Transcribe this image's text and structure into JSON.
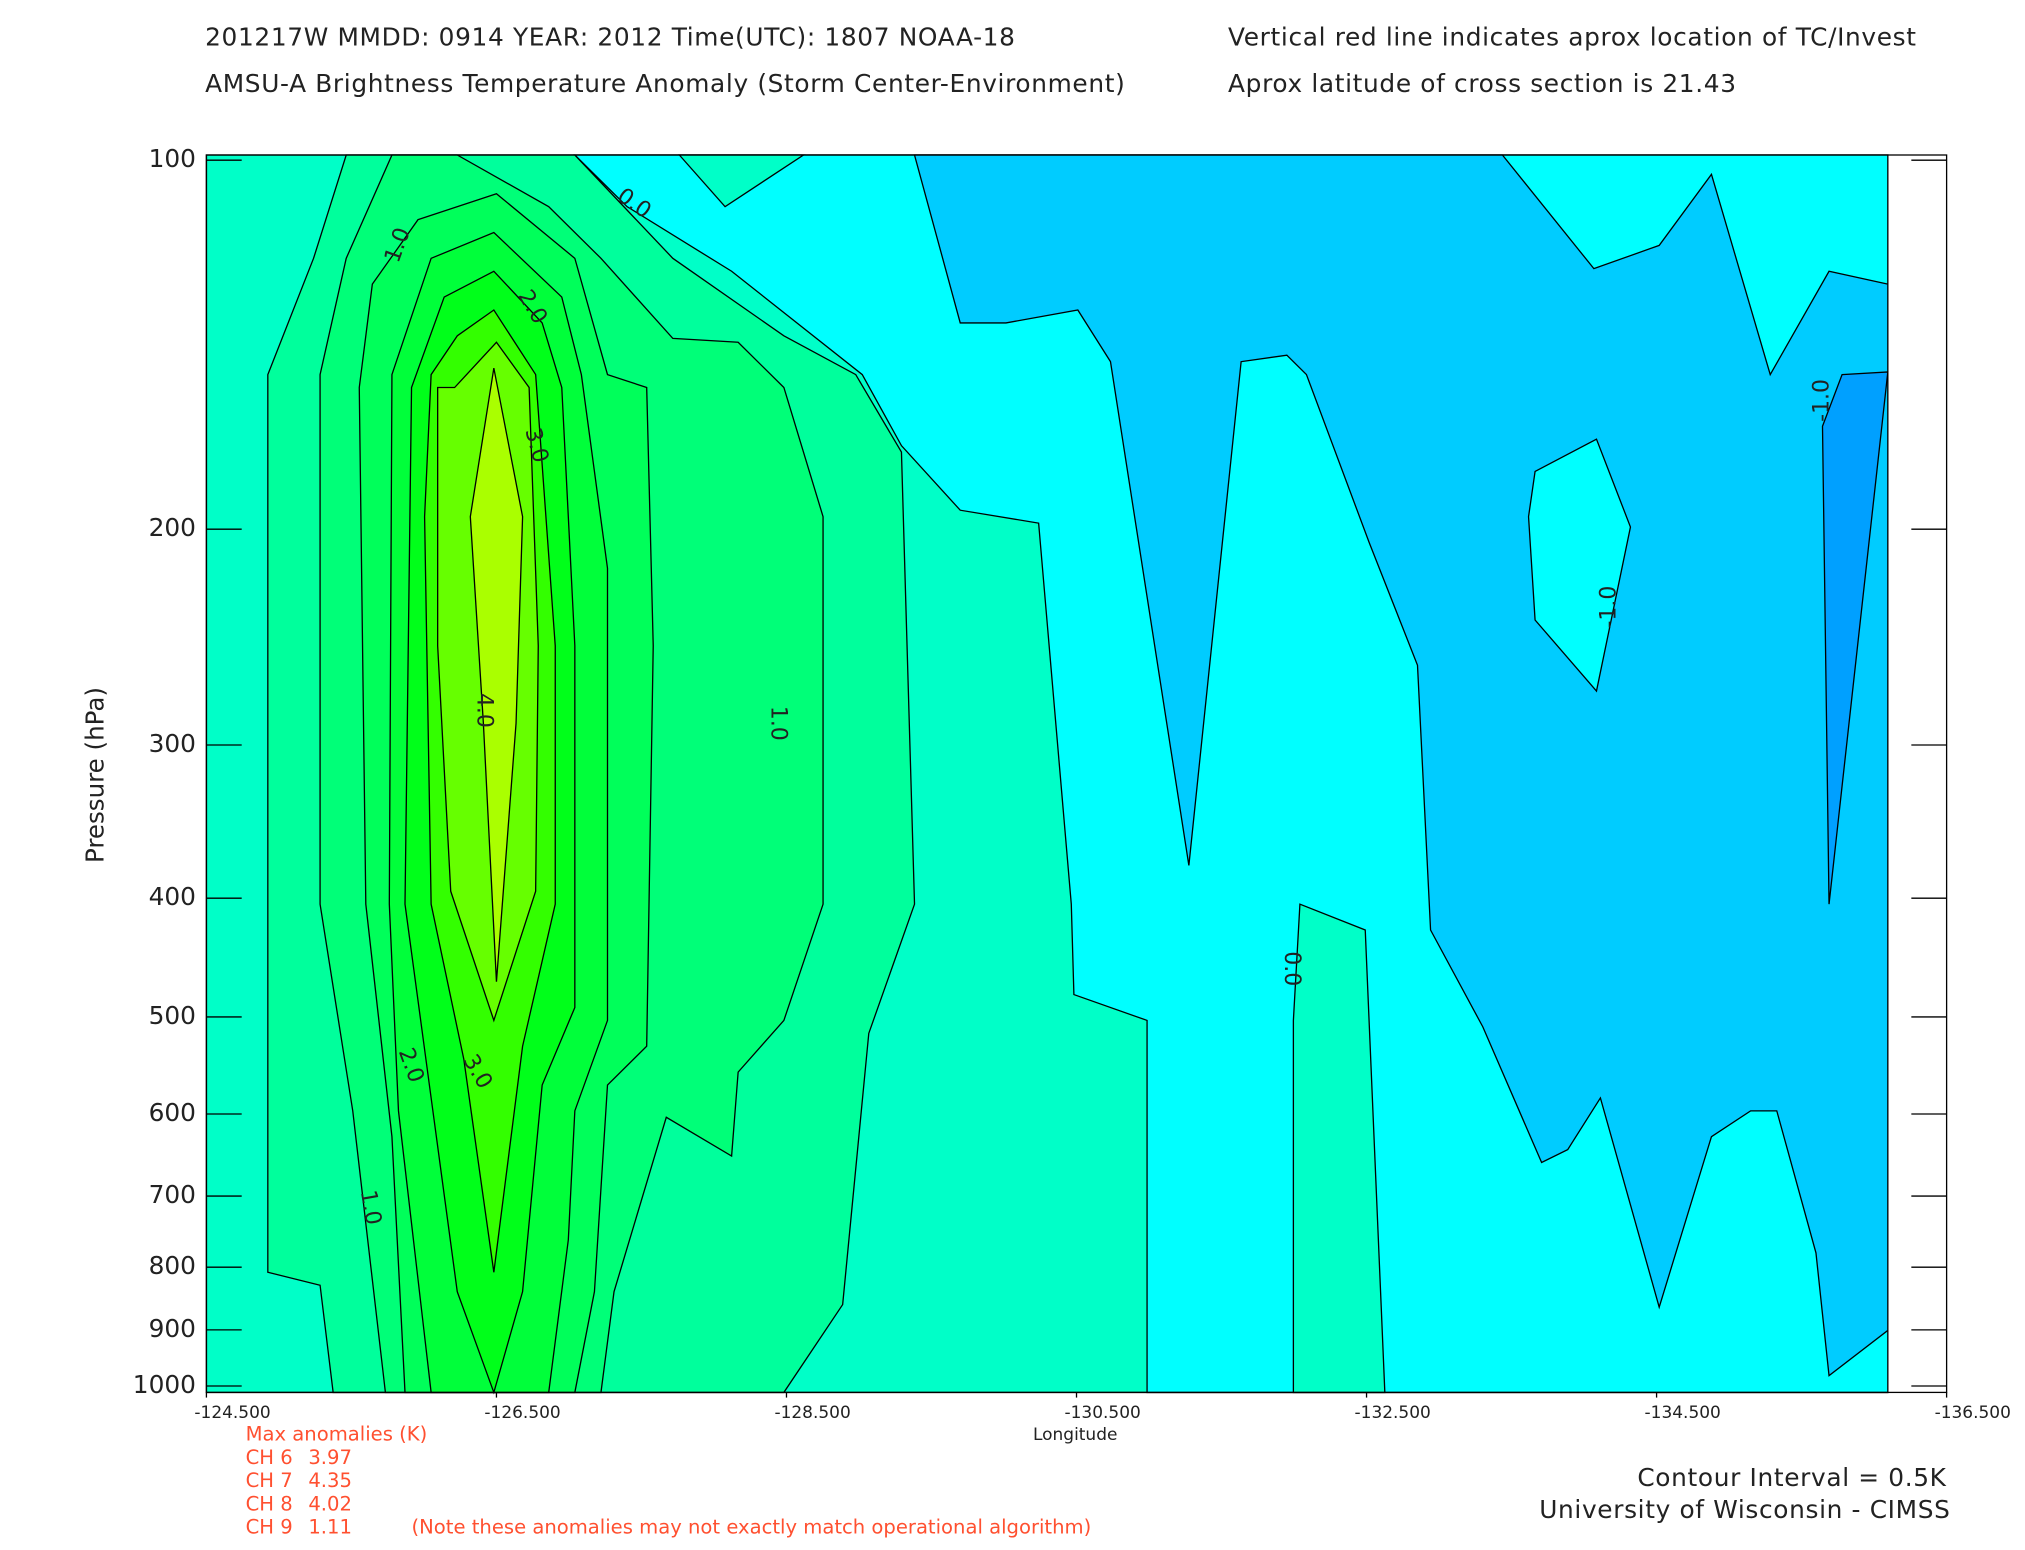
{
  "chart_data": {
    "type": "contour",
    "title": [
      "201217W  MMDD: 0914 YEAR: 2012 Time(UTC): 1807 NOAA-18",
      "AMSU-A Brightness Temperature Anomaly (Storm Center-Environment)"
    ],
    "subtitle": [
      "Vertical red line indicates aprox location of TC/Invest",
      "Aprox latitude of cross section is 21.43"
    ],
    "x_label": "Longitude",
    "y_label": "Pressure (hPa)",
    "xlim": [
      -124.5,
      -136.5
    ],
    "xticks": [
      {
        "value": -124.5,
        "label": "-124.500"
      },
      {
        "value": -126.5,
        "label": "-126.500"
      },
      {
        "value": -128.5,
        "label": "-128.500"
      },
      {
        "value": -130.5,
        "label": "-130.500"
      },
      {
        "value": -132.5,
        "label": "-132.500"
      },
      {
        "value": -134.5,
        "label": "-134.500"
      },
      {
        "value": -136.5,
        "label": "-136.500"
      }
    ],
    "ylim": [
      1000,
      100
    ],
    "y_scale": "log",
    "yticks": [
      100,
      200,
      300,
      400,
      500,
      600,
      700,
      800,
      900,
      1000
    ],
    "levels": [
      {
        "value": 0,
        "color": "#00ffc8"
      },
      {
        "value": -0.5,
        "color": "#00ffff"
      },
      {
        "value": -1,
        "color": "#00ccff"
      },
      {
        "value": -1.5,
        "color": "#00a0ff"
      },
      {
        "value": 0.5,
        "color": "#00ff9c"
      },
      {
        "value": 1,
        "color": "#00ff78"
      },
      {
        "value": 1.5,
        "color": "#00ff5a"
      },
      {
        "value": 2,
        "color": "#00ff3a"
      },
      {
        "value": 2.5,
        "color": "#00ff1a"
      },
      {
        "value": 3,
        "color": "#33ff00"
      },
      {
        "value": 3.5,
        "color": "#66ff00"
      },
      {
        "value": 4,
        "color": "#aaff00"
      }
    ],
    "contour_labels": [
      {
        "value": 0,
        "label": "0.0"
      },
      {
        "value": 1,
        "label": "1.0"
      },
      {
        "value": 2,
        "label": "2.0"
      },
      {
        "value": 3,
        "label": "3.0"
      },
      {
        "value": 4,
        "label": "4.0"
      },
      {
        "value": 1,
        "label": "1.0"
      },
      {
        "value": 3,
        "label": "3.0"
      },
      {
        "value": 2,
        "label": "2.0"
      },
      {
        "value": 1,
        "label": "1.0"
      },
      {
        "value": 0,
        "label": "0.0"
      },
      {
        "value": -1,
        "label": "-1.0"
      },
      {
        "value": -1,
        "label": "-1.0"
      }
    ],
    "max_anomalies": {
      "title": "Max anomalies (K)",
      "rows": [
        {
          "channel": "CH 6",
          "value": 3.97
        },
        {
          "channel": "CH 7",
          "value": 4.35
        },
        {
          "channel": "CH 8",
          "value": 4.02
        },
        {
          "channel": "CH 9",
          "value": 1.11
        }
      ],
      "note": "(Note these anomalies may not exactly match operational algorithm)"
    },
    "footer": [
      "Contour Interval = 0.5K",
      "University of Wisconsin - CIMSS"
    ]
  }
}
